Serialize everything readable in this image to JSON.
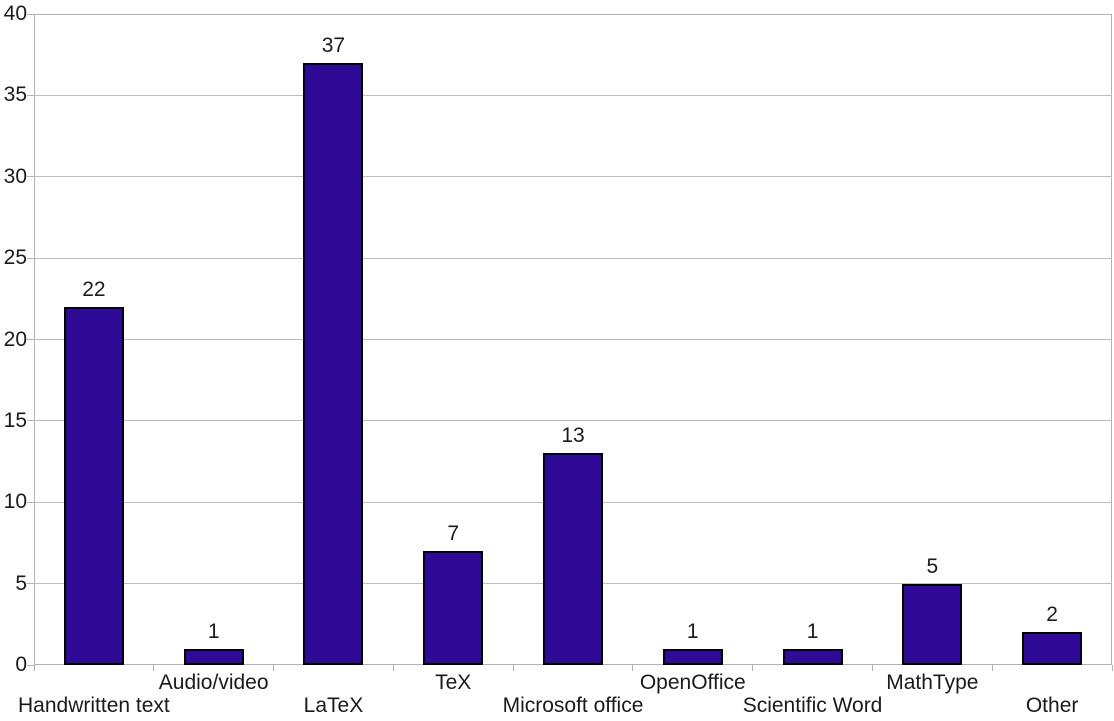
{
  "chart_data": {
    "type": "bar",
    "title": "",
    "xlabel": "",
    "ylabel": "",
    "categories": [
      "Handwritten text",
      "Audio/video",
      "LaTeX",
      "TeX",
      "Microsoft office",
      "OpenOffice",
      "Scientific Word",
      "MathType",
      "Other"
    ],
    "values": [
      22,
      1,
      37,
      7,
      13,
      1,
      1,
      5,
      2
    ],
    "ylim": [
      0,
      40
    ],
    "yticks": [
      0,
      5,
      10,
      15,
      20,
      25,
      30,
      35,
      40
    ],
    "grid": true,
    "legend_position": "none",
    "value_labels_shown": true,
    "colors": {
      "bar_fill": "#2e0a96",
      "bar_border": "#000000",
      "gridline": "#bdbdbd",
      "axis": "#b3b3b3",
      "text": "#1a1a1a",
      "background": "#ffffff"
    }
  }
}
